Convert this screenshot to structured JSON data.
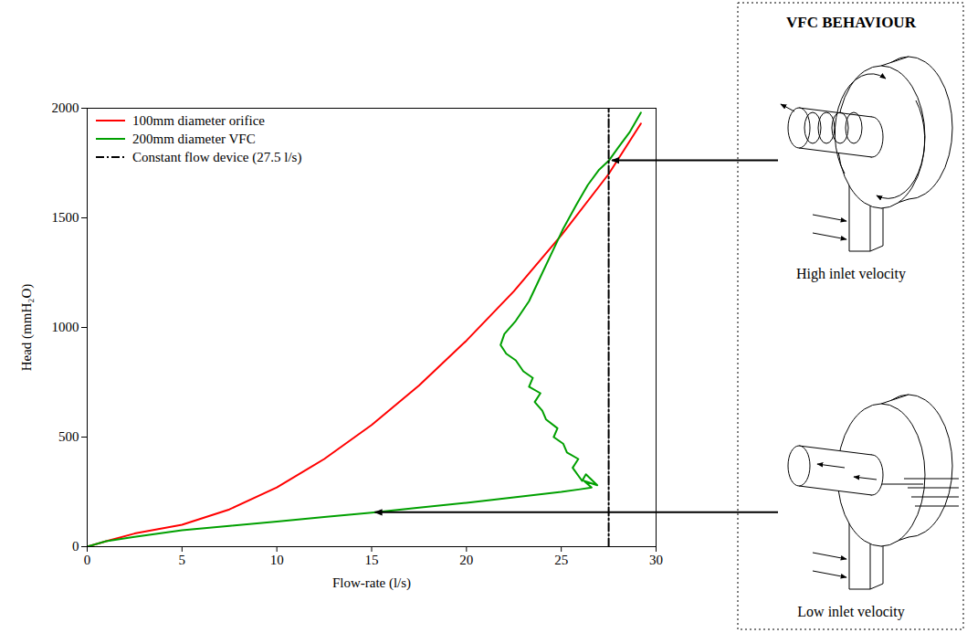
{
  "chart_data": {
    "type": "line",
    "xlabel": "Flow-rate (l/s)",
    "ylabel": "Head (mmH₂O)",
    "xlim": [
      0,
      30
    ],
    "xticks": [
      0,
      5,
      10,
      15,
      20,
      25,
      30
    ],
    "ylim": [
      0,
      2000
    ],
    "yticks": [
      0,
      500,
      1000,
      1500,
      2000
    ],
    "grid": false,
    "legend": "upper left",
    "series": [
      {
        "name": "100mm diameter orifice",
        "color": "#ff0000",
        "line_style": "solid",
        "x": [
          0,
          1,
          2.5,
          5,
          7.5,
          10,
          12.5,
          15,
          17.5,
          20,
          22.5,
          25,
          27.5,
          29.2
        ],
        "values": [
          0,
          25,
          60,
          100,
          170,
          270,
          400,
          555,
          735,
          940,
          1165,
          1420,
          1700,
          1930
        ]
      },
      {
        "name": "200mm diameter VFC",
        "color": "#00a000",
        "line_style": "solid",
        "x": [
          0,
          1,
          2.5,
          5,
          7.5,
          10,
          12.5,
          15,
          17.5,
          20,
          22.5,
          25,
          26,
          26.6,
          26.2,
          26.9,
          26.3,
          26.1,
          25.6,
          25.9,
          25.3,
          25.1,
          24.6,
          24.8,
          24.2,
          24.0,
          23.6,
          23.9,
          23.3,
          23.5,
          23.0,
          22.6,
          22.1,
          21.8,
          22.0,
          22.6,
          23.3,
          23.9,
          24.5,
          25.1,
          25.8,
          26.4,
          27.0,
          27.5,
          28.0,
          28.6,
          29.2
        ],
        "values": [
          0,
          25,
          45,
          75,
          95,
          115,
          135,
          155,
          178,
          200,
          225,
          250,
          262,
          270,
          300,
          280,
          330,
          300,
          360,
          400,
          430,
          470,
          500,
          540,
          580,
          620,
          660,
          700,
          730,
          770,
          800,
          850,
          880,
          920,
          970,
          1030,
          1120,
          1230,
          1340,
          1450,
          1560,
          1650,
          1720,
          1760,
          1820,
          1890,
          1980
        ]
      },
      {
        "name": "Constant flow device (27.5 l/s)",
        "color": "#000000",
        "line_style": "dashdot",
        "x": [
          27.5,
          27.5
        ],
        "values": [
          0,
          2000
        ]
      }
    ]
  },
  "diagram": {
    "title": "VFC BEHAVIOUR",
    "panels": [
      {
        "label": "High inlet velocity",
        "arrow_to": {
          "x": 27.5,
          "y": 1760
        }
      },
      {
        "label": "Low inlet velocity",
        "arrow_to": {
          "x": 15,
          "y": 155
        }
      }
    ]
  }
}
